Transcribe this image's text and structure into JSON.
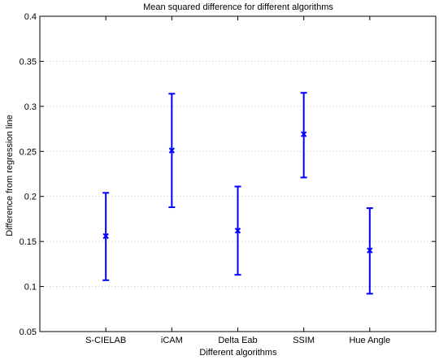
{
  "chart_data": {
    "type": "errorbar",
    "title": "Mean squared difference for different algorithms",
    "xlabel": "Different algorithms",
    "ylabel": "Difference from regression line",
    "categories": [
      "S-CIELAB",
      "iCAM",
      "Delta Eab",
      "SSIM",
      "Hue Angle"
    ],
    "series": [
      {
        "mean": [
          0.156,
          0.251,
          0.162,
          0.269,
          0.14
        ],
        "lower": [
          0.107,
          0.188,
          0.113,
          0.221,
          0.092
        ],
        "upper": [
          0.204,
          0.314,
          0.211,
          0.315,
          0.187
        ]
      }
    ],
    "ylim": [
      0.05,
      0.4
    ],
    "yticks": [
      "0.05",
      "0.1",
      "0.15",
      "0.2",
      "0.25",
      "0.3",
      "0.35",
      "0.4"
    ],
    "grid": "horizontal dotted",
    "marker": "x",
    "color": "#0000ff"
  }
}
